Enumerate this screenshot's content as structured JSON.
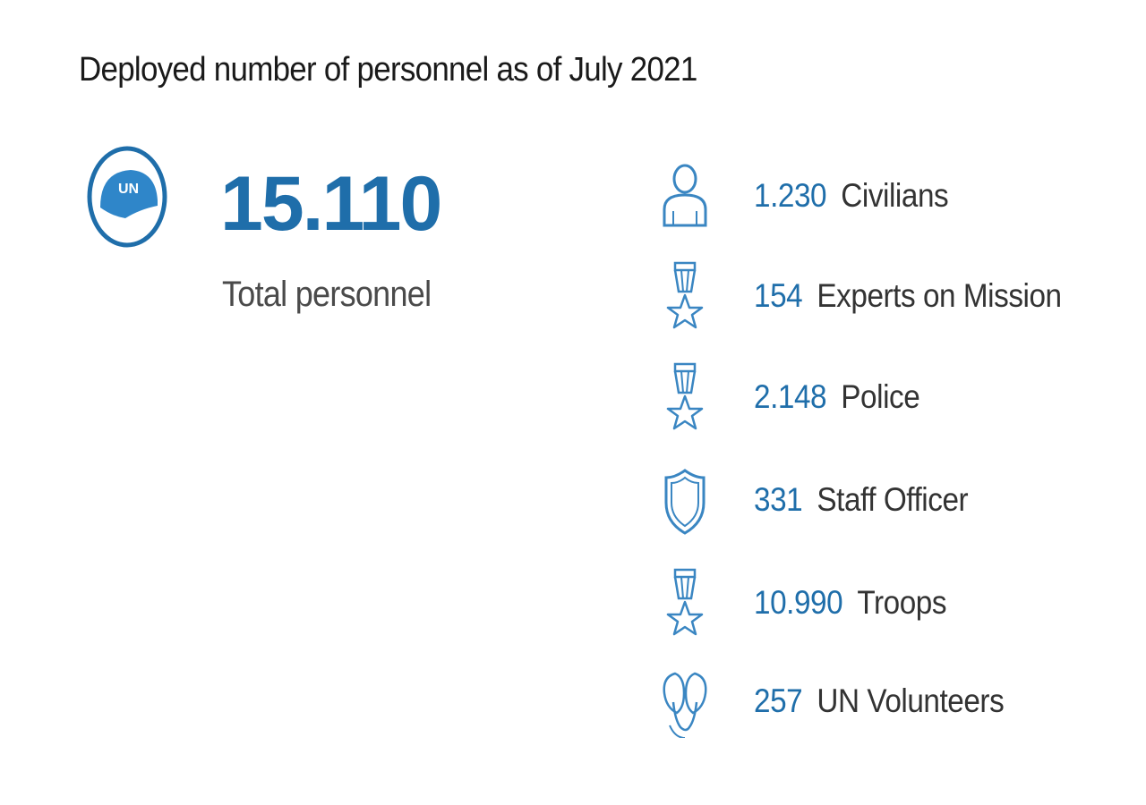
{
  "title": "Deployed number of personnel as of July 2021",
  "badge": {
    "icon": "un-helmet-icon",
    "text": "UN"
  },
  "total": {
    "value": "15.110",
    "label": "Total personnel"
  },
  "categories": [
    {
      "value": "1.230",
      "label": "Civilians",
      "icon": "person-icon"
    },
    {
      "value": "154",
      "label": "Experts on Mission",
      "icon": "medal-icon"
    },
    {
      "value": "2.148",
      "label": "Police",
      "icon": "medal-icon"
    },
    {
      "value": "331",
      "label": "Staff Officer",
      "icon": "shield-icon"
    },
    {
      "value": "10.990",
      "label": "Troops",
      "icon": "medal-icon"
    },
    {
      "value": "257",
      "label": "UN Volunteers",
      "icon": "hands-icon"
    }
  ],
  "colors": {
    "accent": "#1f6eaa",
    "text": "#333333",
    "icon_stroke": "#3a86c2"
  }
}
